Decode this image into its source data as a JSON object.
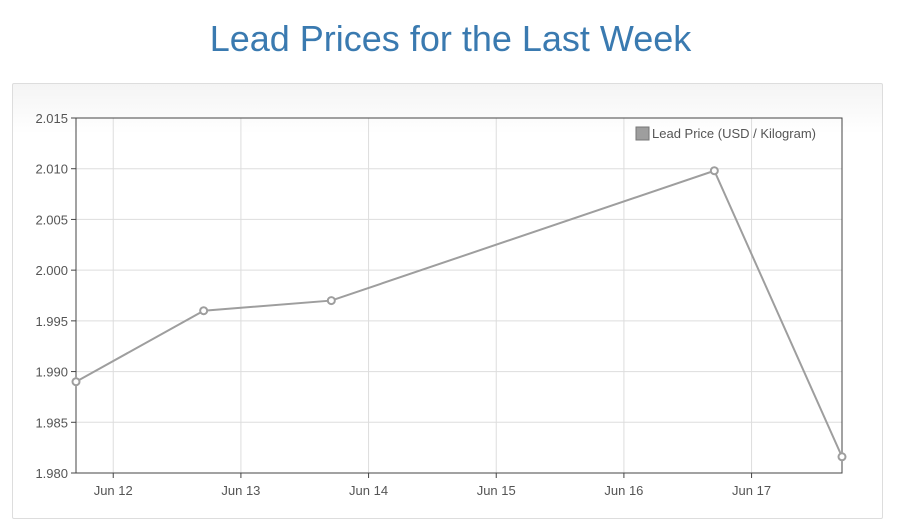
{
  "page": {
    "title": "Lead Prices for the Last Week"
  },
  "chart_data": {
    "type": "line",
    "title": "Lead Prices for the Last Week",
    "xlabel": "",
    "ylabel": "",
    "x_ticks": [
      "Jun 12",
      "Jun 13",
      "Jun 14",
      "Jun 15",
      "Jun 16",
      "Jun 17"
    ],
    "y_ticks": [
      "1.980",
      "1.985",
      "1.990",
      "1.995",
      "2.000",
      "2.005",
      "2.010",
      "2.015"
    ],
    "ylim": [
      1.98,
      2.015
    ],
    "xlim": [
      "2024-06-11T17:00",
      "2024-06-17T17:00"
    ],
    "grid": true,
    "legend_position": "top-right",
    "series": [
      {
        "name": "Lead Price (USD / Kilogram)",
        "color": "#9e9e9e",
        "points": [
          {
            "x": "Jun 11 17:00",
            "y": 1.989
          },
          {
            "x": "Jun 12 17:00",
            "y": 1.996
          },
          {
            "x": "Jun 13 17:00",
            "y": 1.997
          },
          {
            "x": "Jun 16 17:00",
            "y": 2.0098
          },
          {
            "x": "Jun 17 17:00",
            "y": 1.9816
          }
        ]
      }
    ]
  }
}
